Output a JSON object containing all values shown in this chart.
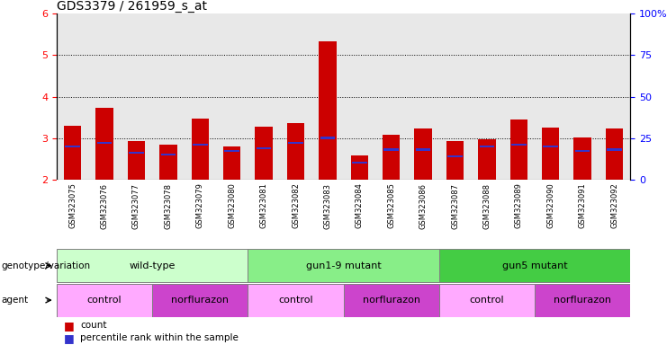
{
  "title": "GDS3379 / 261959_s_at",
  "samples": [
    "GSM323075",
    "GSM323076",
    "GSM323077",
    "GSM323078",
    "GSM323079",
    "GSM323080",
    "GSM323081",
    "GSM323082",
    "GSM323083",
    "GSM323084",
    "GSM323085",
    "GSM323086",
    "GSM323087",
    "GSM323088",
    "GSM323089",
    "GSM323090",
    "GSM323091",
    "GSM323092"
  ],
  "count_values": [
    3.3,
    3.72,
    2.93,
    2.85,
    3.47,
    2.8,
    3.27,
    3.37,
    5.33,
    2.57,
    3.08,
    3.22,
    2.93,
    2.98,
    3.45,
    3.25,
    3.02,
    3.22
  ],
  "percentile_values": [
    20,
    22,
    16,
    15,
    21,
    17,
    19,
    22,
    25,
    10,
    18,
    18,
    14,
    20,
    21,
    20,
    17,
    18
  ],
  "ylim_left": [
    2,
    6
  ],
  "ylim_right": [
    0,
    100
  ],
  "yticks_left": [
    2,
    3,
    4,
    5,
    6
  ],
  "yticks_right": [
    0,
    25,
    50,
    75,
    100
  ],
  "bar_color_red": "#cc0000",
  "bar_color_blue": "#3333cc",
  "plot_bg": "#e8e8e8",
  "xticklabel_bg": "#cccccc",
  "genotype_groups": [
    {
      "label": "wild-type",
      "start": 0,
      "end": 6,
      "color": "#ccffcc"
    },
    {
      "label": "gun1-9 mutant",
      "start": 6,
      "end": 12,
      "color": "#88ee88"
    },
    {
      "label": "gun5 mutant",
      "start": 12,
      "end": 18,
      "color": "#44cc44"
    }
  ],
  "agent_groups": [
    {
      "label": "control",
      "start": 0,
      "end": 3,
      "color": "#ffaaff"
    },
    {
      "label": "norflurazon",
      "start": 3,
      "end": 6,
      "color": "#cc44cc"
    },
    {
      "label": "control",
      "start": 6,
      "end": 9,
      "color": "#ffaaff"
    },
    {
      "label": "norflurazon",
      "start": 9,
      "end": 12,
      "color": "#cc44cc"
    },
    {
      "label": "control",
      "start": 12,
      "end": 15,
      "color": "#ffaaff"
    },
    {
      "label": "norflurazon",
      "start": 15,
      "end": 18,
      "color": "#cc44cc"
    }
  ],
  "legend_count": "count",
  "legend_percentile": "percentile rank within the sample",
  "genotype_label": "genotype/variation",
  "agent_label": "agent"
}
